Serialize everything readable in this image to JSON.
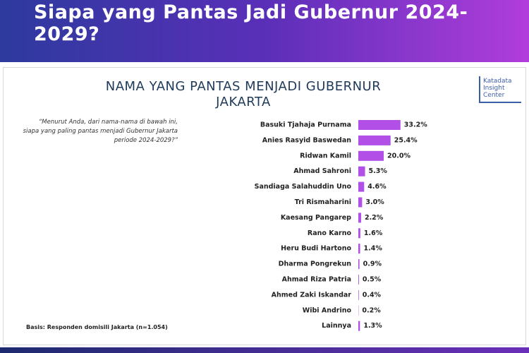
{
  "banner_title": "Siapa yang Pantas Jadi Gubernur 2024-2029?",
  "question": "“Menurut Anda, dari nama-nama di bawah ini, siapa yang paling pantas menjadi Gubernur Jakarta periode 2024-2029?”",
  "basis": "Basis: Responden domisili Jakarta (n=1.054)",
  "logo": "Katadata Insight Center",
  "chart_data": {
    "type": "bar",
    "orientation": "horizontal",
    "title": "NAMA YANG PANTAS MENJADI GUBERNUR JAKARTA",
    "categories": [
      "Basuki Tjahaja Purnama",
      "Anies Rasyid Baswedan",
      "Ridwan Kamil",
      "Ahmad Sahroni",
      "Sandiaga Salahuddin Uno",
      "Tri Rismaharini",
      "Kaesang Pangarep",
      "Rano Karno",
      "Heru Budi Hartono",
      "Dharma Pongrekun",
      "Ahmad Riza Patria",
      "Ahmed Zaki Iskandar",
      "Wibi Andrino",
      "Lainnya"
    ],
    "values": [
      33.2,
      25.4,
      20.0,
      5.3,
      4.6,
      3.0,
      2.2,
      1.6,
      1.4,
      0.9,
      0.5,
      0.4,
      0.2,
      1.3
    ],
    "value_labels": [
      "33.2%",
      "25.4%",
      "20.0%",
      "5.3%",
      "4.6%",
      "3.0%",
      "2.2%",
      "1.6%",
      "1.4%",
      "0.9%",
      "0.5%",
      "0.4%",
      "0.2%",
      "1.3%"
    ],
    "color": "#b14fe6"
  }
}
